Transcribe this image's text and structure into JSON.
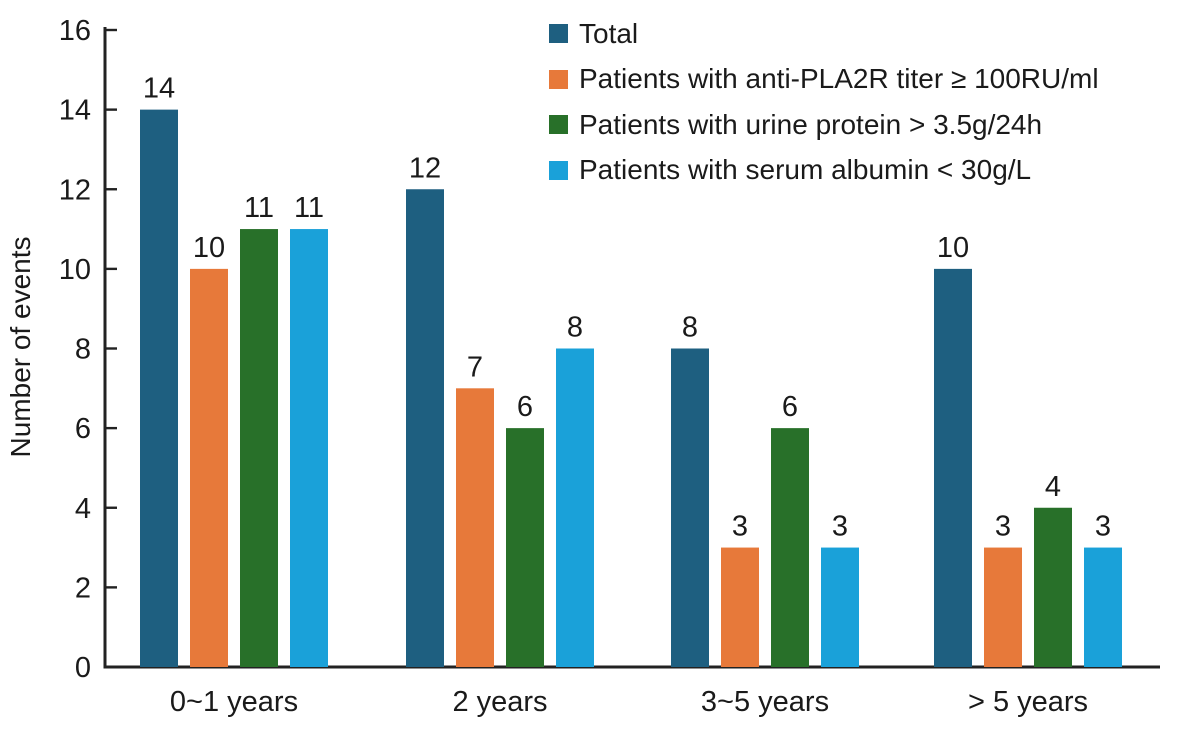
{
  "chart_data": {
    "type": "bar",
    "title": "",
    "xlabel": "",
    "ylabel": "Number of events",
    "categories": [
      "0~1 years",
      "2 years",
      "3~5 years",
      "> 5 years"
    ],
    "series": [
      {
        "name": "Total",
        "color": "#1e5f80",
        "values": [
          14,
          12,
          8,
          10
        ]
      },
      {
        "name": "Patients with anti-PLA2R titer ≥ 100RU/ml",
        "color": "#e7793a",
        "values": [
          10,
          7,
          3,
          3
        ]
      },
      {
        "name": "Patients with urine protein > 3.5g/24h",
        "color": "#287029",
        "values": [
          11,
          6,
          6,
          4
        ]
      },
      {
        "name": "Patients with serum albumin < 30g/L",
        "color": "#1aa1d9",
        "values": [
          11,
          8,
          3,
          3
        ]
      }
    ],
    "ylim": [
      0,
      16
    ],
    "yticks": [
      0,
      2,
      4,
      6,
      8,
      10,
      12,
      14,
      16
    ],
    "grid": false,
    "bar_labels": true,
    "legend_position": "top-right",
    "axis_color": "#222222",
    "text_color": "#1a1a1a"
  }
}
